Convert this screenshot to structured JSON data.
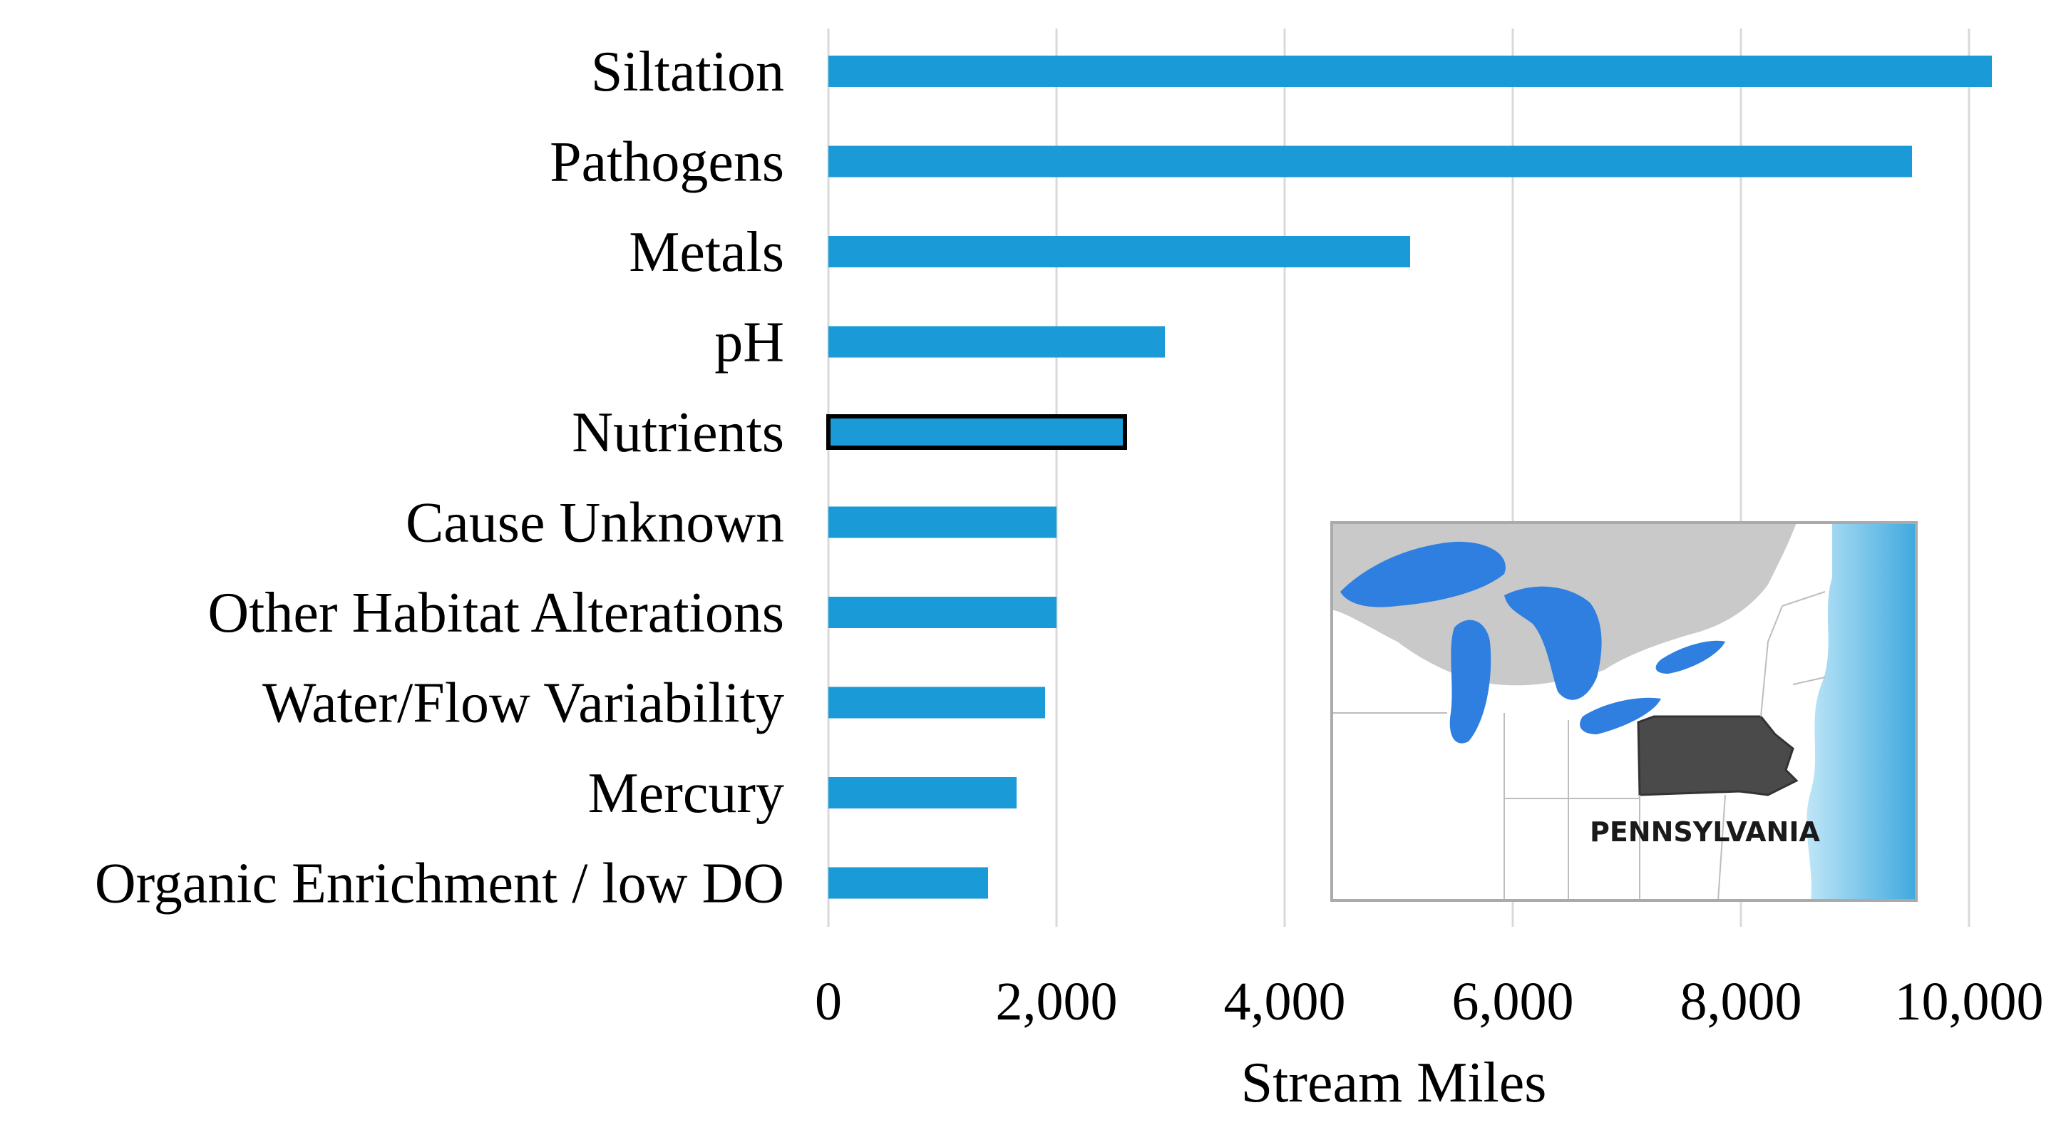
{
  "chart_data": {
    "type": "bar",
    "orientation": "horizontal",
    "title": "",
    "xlabel": "Stream Miles",
    "ylabel": "",
    "xlim": [
      0,
      10000
    ],
    "x_ticks": [
      {
        "value": 0,
        "label": "0"
      },
      {
        "value": 2000,
        "label": "2,000"
      },
      {
        "value": 4000,
        "label": "4,000"
      },
      {
        "value": 6000,
        "label": "6,000"
      },
      {
        "value": 8000,
        "label": "8,000"
      },
      {
        "value": 10000,
        "label": "10,000"
      }
    ],
    "grid": "vertical",
    "highlighted_category": "Nutrients",
    "bar_color": "#1a9ad6",
    "highlight_outline_color": "#000000",
    "categories": [
      "Siltation",
      "Pathogens",
      "Metals",
      "pH",
      "Nutrients",
      "Cause Unknown",
      "Other Habitat Alterations",
      "Water/Flow Variability",
      "Mercury",
      "Organic Enrichment / low DO"
    ],
    "values": [
      10200,
      9500,
      5100,
      2950,
      2600,
      2000,
      2000,
      1900,
      1650,
      1400
    ],
    "inset_map": {
      "label": "PENNSYLVANIA",
      "land_color": "#ffffff",
      "canada_color": "#c9c9c9",
      "lake_color": "#2f7fe0",
      "ocean_color": "#6fc3ea",
      "state_color": "#4a4a4a"
    }
  }
}
